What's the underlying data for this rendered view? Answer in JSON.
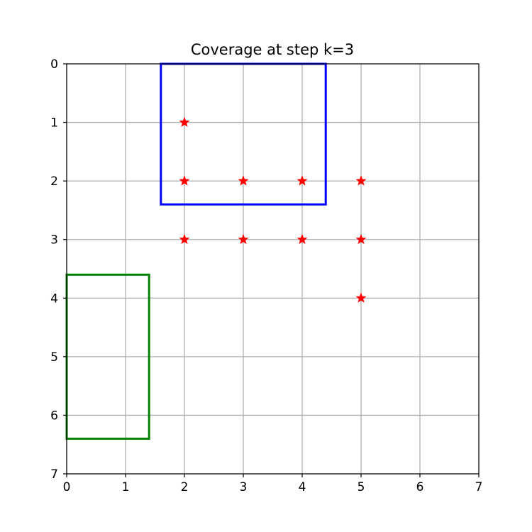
{
  "chart_data": {
    "type": "scatter",
    "title": "Coverage at step k=3",
    "xlabel": "",
    "ylabel": "",
    "xlim": [
      0,
      7
    ],
    "ylim": [
      7,
      0
    ],
    "y_inverted": true,
    "grid": true,
    "x_ticks": [
      "0",
      "1",
      "2",
      "3",
      "4",
      "5",
      "6",
      "7"
    ],
    "y_ticks": [
      "0",
      "1",
      "2",
      "3",
      "4",
      "5",
      "6",
      "7"
    ],
    "points": [
      {
        "x": 2,
        "y": 1
      },
      {
        "x": 2,
        "y": 2
      },
      {
        "x": 3,
        "y": 2
      },
      {
        "x": 4,
        "y": 2
      },
      {
        "x": 5,
        "y": 2
      },
      {
        "x": 2,
        "y": 3
      },
      {
        "x": 3,
        "y": 3
      },
      {
        "x": 4,
        "y": 3
      },
      {
        "x": 5,
        "y": 3
      },
      {
        "x": 5,
        "y": 4
      }
    ],
    "marker": "star",
    "marker_color": "#ff0000",
    "rectangles": [
      {
        "color": "#0000ff",
        "x0": 1.6,
        "x1": 4.4,
        "y0": 0,
        "y1": 2.4
      },
      {
        "color": "#008000",
        "x0": 0,
        "x1": 1.4,
        "y0": 3.6,
        "y1": 6.4
      }
    ]
  }
}
